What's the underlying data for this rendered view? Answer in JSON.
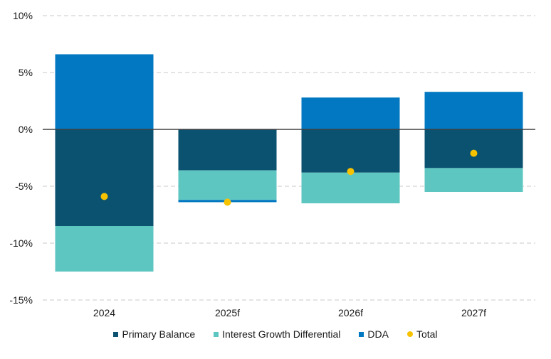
{
  "chart_data": {
    "type": "bar",
    "stacked": true,
    "categories": [
      "2024",
      "2025f",
      "2026f",
      "2027f"
    ],
    "series": [
      {
        "name": "Primary Balance",
        "color": "#0b5270",
        "values": [
          -8.5,
          -3.6,
          -3.8,
          -3.4
        ]
      },
      {
        "name": "Interest Growth Differential",
        "color": "#5ec6c1",
        "values": [
          -4.0,
          -2.6,
          -2.7,
          -2.1
        ]
      },
      {
        "name": "DDA",
        "color": "#0178c1",
        "values": [
          6.6,
          -0.2,
          2.8,
          3.3
        ]
      }
    ],
    "total": {
      "name": "Total",
      "color": "#f7c200",
      "values": [
        -5.9,
        -6.4,
        -3.7,
        -2.1
      ]
    },
    "yticks": [
      "10%",
      "5%",
      "0%",
      "-5%",
      "-10%",
      "-15%"
    ],
    "ylim": [
      -15,
      10
    ],
    "grid": true,
    "legend_position": "bottom"
  }
}
